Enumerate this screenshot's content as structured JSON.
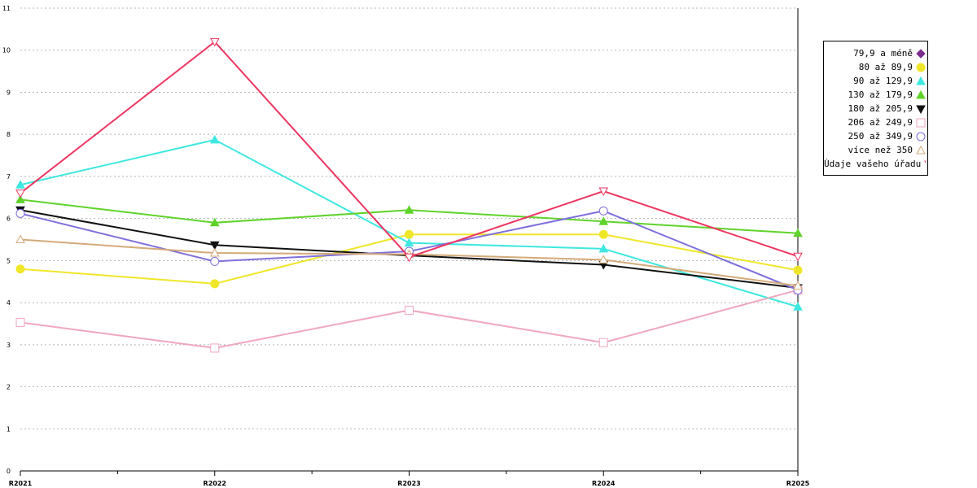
{
  "chart_data": {
    "type": "line",
    "categories": [
      "R2021",
      "R2022",
      "R2023",
      "R2024",
      "R2025"
    ],
    "ylim": [
      0,
      11
    ],
    "yticks": [
      "0",
      "1",
      "2",
      "3",
      "4",
      "5",
      "6",
      "7",
      "8",
      "9",
      "10",
      "11"
    ],
    "grid": true,
    "legend_position": "right",
    "series": [
      {
        "name": "79,9 a méně",
        "color": "#7b2c8c",
        "marker": "diamond",
        "values": [
          null,
          null,
          null,
          null,
          null
        ]
      },
      {
        "name": "80 až 89,9",
        "color": "#f0e629",
        "marker": "circle-filled",
        "values": [
          4.8,
          4.45,
          5.62,
          5.62,
          4.77
        ]
      },
      {
        "name": "90 až 129,9",
        "color": "#3ee8e0",
        "marker": "triangle-filled",
        "values": [
          6.8,
          7.87,
          5.42,
          5.28,
          3.9
        ]
      },
      {
        "name": "130 až 179,9",
        "color": "#5fd32a",
        "marker": "triangle-filled",
        "values": [
          6.45,
          5.9,
          6.2,
          5.93,
          5.65
        ]
      },
      {
        "name": "180 až 205,9",
        "color": "#111111",
        "marker": "triangle-down-filled",
        "values": [
          6.2,
          5.37,
          5.12,
          4.9,
          4.35
        ]
      },
      {
        "name": "206 až 249,9",
        "color": "#f0a6c0",
        "marker": "square-open",
        "values": [
          3.53,
          2.92,
          3.82,
          3.05,
          4.3
        ]
      },
      {
        "name": "250 až 349,9",
        "color": "#7e6fdc",
        "marker": "circle-open",
        "values": [
          6.12,
          4.98,
          5.22,
          6.18,
          4.3
        ]
      },
      {
        "name": "více než 350",
        "color": "#d4aa78",
        "marker": "triangle-open",
        "values": [
          5.5,
          5.18,
          5.15,
          5.02,
          4.4
        ]
      },
      {
        "name": "Údaje vašeho úřadu",
        "color": "#ee3560",
        "marker": "triangle-down-open",
        "values": [
          6.6,
          10.2,
          5.08,
          6.65,
          5.1
        ]
      }
    ]
  }
}
